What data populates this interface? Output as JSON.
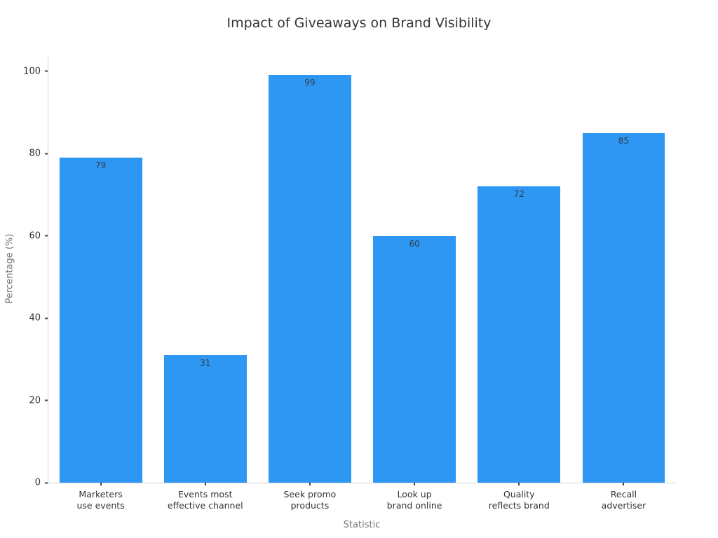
{
  "chart_data": {
    "type": "bar",
    "title": "Impact of Giveaways on Brand Visibility",
    "xlabel": "Statistic",
    "ylabel": "Percentage (%)",
    "categories": [
      "Marketers\nuse events",
      "Events most\neffective channel",
      "Seek promo\nproducts",
      "Look up\nbrand online",
      "Quality\nreflects brand",
      "Recall\nadvertiser"
    ],
    "values": [
      79,
      31,
      99,
      60,
      72,
      85
    ],
    "value_labels": [
      "79",
      "31",
      "99",
      "60",
      "72",
      "85"
    ],
    "yticks": [
      0,
      20,
      40,
      60,
      80,
      100
    ],
    "ylim": [
      0,
      104
    ],
    "bar_color": "#2e96f3",
    "value_label_color": "#31404f",
    "axis_line_color": "#d4d4d4",
    "tick_color": "#444444",
    "grid": false,
    "legend": false
  }
}
